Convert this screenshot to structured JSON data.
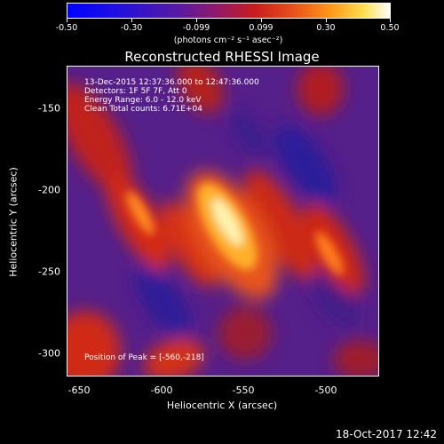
{
  "colorbar": {
    "ticks": [
      "-0.50",
      "-0.30",
      "-0.099",
      "0.099",
      "0.30",
      "0.50"
    ],
    "units": "(photons cm⁻² s⁻¹ asec⁻²)"
  },
  "title": "Reconstructed RHESSI Image",
  "annotations": {
    "time_range": "13-Dec-2015 12:37:36.000 to 12:47:36.000",
    "detectors": "Detectors: 1F 5F 7F, Att 0",
    "energy": "Energy Range: 6.0 - 12.0 keV",
    "clean": "Clean    Total counts: 6.71E+04",
    "peak": "Position of Peak = [-560,-218]"
  },
  "axes": {
    "xlabel": "Heliocentric X (arcsec)",
    "ylabel": "Heliocentric Y (arcsec)",
    "x_ticks": [
      "-650",
      "-600",
      "-550",
      "-500"
    ],
    "y_ticks": [
      "-150",
      "-200",
      "-250",
      "-300"
    ]
  },
  "timestamp": "18-Oct-2017 12:42"
}
